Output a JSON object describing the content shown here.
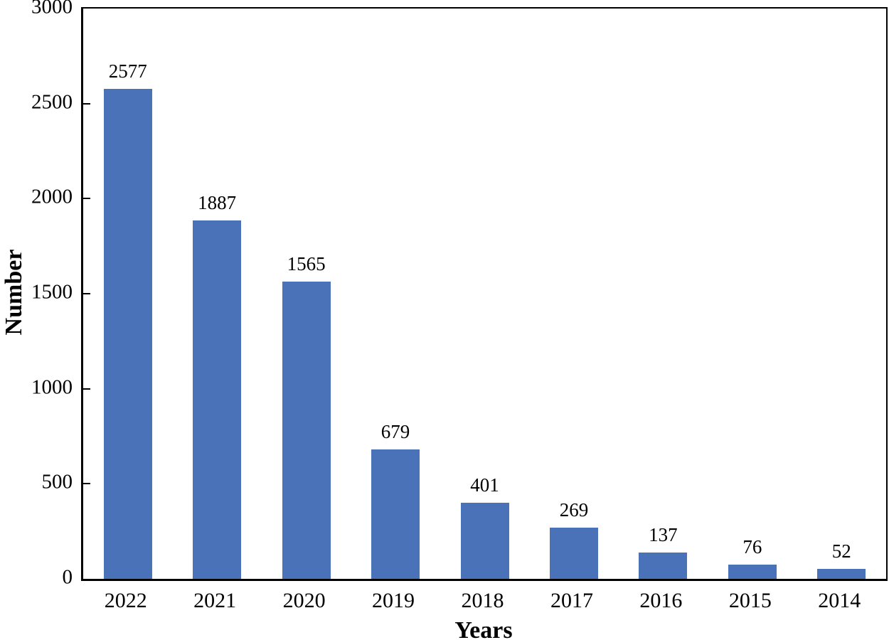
{
  "chart_data": {
    "type": "bar",
    "title": "",
    "categories": [
      "2022",
      "2021",
      "2020",
      "2019",
      "2018",
      "2017",
      "2016",
      "2015",
      "2014"
    ],
    "values": [
      2577,
      1887,
      1565,
      679,
      401,
      269,
      137,
      76,
      52
    ],
    "xlabel": "Years",
    "ylabel": "Number",
    "ylim": [
      0,
      3000
    ],
    "yticks": [
      0,
      500,
      1000,
      1500,
      2000,
      2500,
      3000
    ],
    "grid": false,
    "legend_position": "none",
    "bar_color": "#4a72b8",
    "axis_color": "#000000",
    "background_color": "#ffffff"
  }
}
